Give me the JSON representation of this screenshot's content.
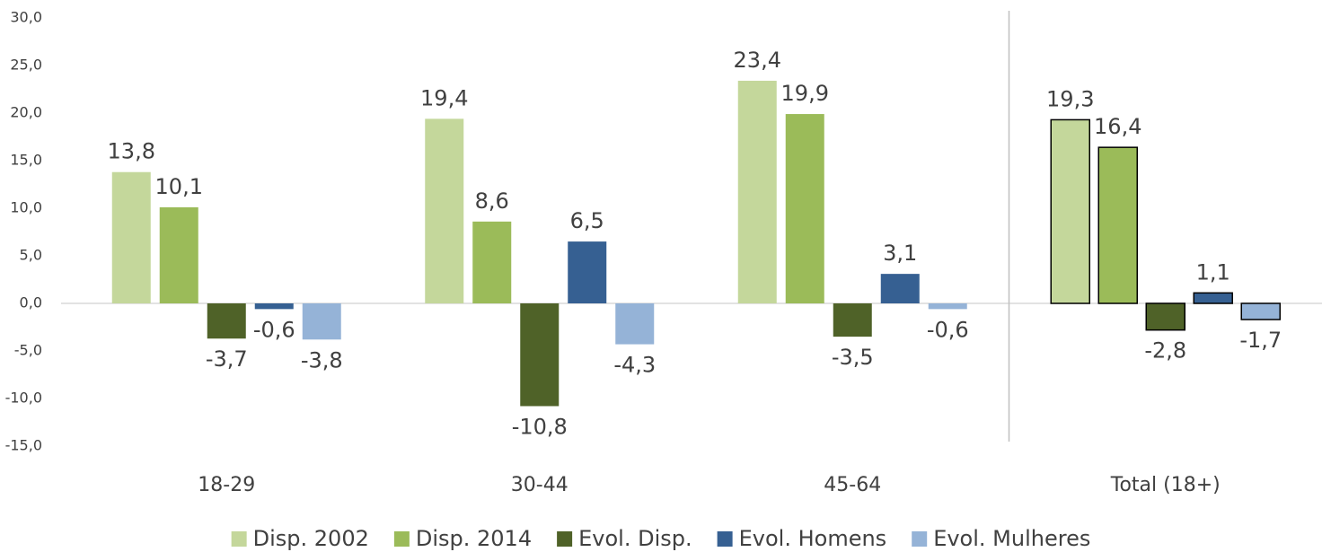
{
  "chart_data": {
    "type": "bar",
    "categories": [
      "18-29",
      "30-44",
      "45-64",
      "Total (18+)"
    ],
    "series": [
      {
        "name": "Disp. 2002",
        "color": "#c4d79b",
        "values": [
          13.8,
          19.4,
          23.4,
          19.3
        ],
        "value_labels": [
          "13,8",
          "19,4",
          "23,4",
          "19,3"
        ]
      },
      {
        "name": "Disp. 2014",
        "color": "#9bbb59",
        "values": [
          10.1,
          8.6,
          19.9,
          16.4
        ],
        "value_labels": [
          "10,1",
          "8,6",
          "19,9",
          "16,4"
        ]
      },
      {
        "name": "Evol. Disp.",
        "color": "#4f6228",
        "values": [
          -3.7,
          -10.8,
          -3.5,
          -2.8
        ],
        "value_labels": [
          "-3,7",
          "-10,8",
          "-3,5",
          "-2,8"
        ]
      },
      {
        "name": "Evol. Homens",
        "color": "#366092",
        "values": [
          -0.6,
          6.5,
          3.1,
          1.1
        ],
        "value_labels": [
          "-0,6",
          "6,5",
          "3,1",
          "1,1"
        ]
      },
      {
        "name": "Evol. Mulheres",
        "color": "#95b3d7",
        "values": [
          -3.8,
          -4.3,
          -0.6,
          -1.7
        ],
        "value_labels": [
          "-3,8",
          "-4,3",
          "-0,6",
          "-1,7"
        ]
      }
    ],
    "ylim": [
      -15,
      30
    ],
    "yticks": [
      {
        "value": -15,
        "label": "-15,0"
      },
      {
        "value": -10,
        "label": "-10,0"
      },
      {
        "value": -5,
        "label": "-5,0"
      },
      {
        "value": 0,
        "label": "0,0"
      },
      {
        "value": 5,
        "label": "5,0"
      },
      {
        "value": 10,
        "label": "10,0"
      },
      {
        "value": 15,
        "label": "15,0"
      },
      {
        "value": 20,
        "label": "20,0"
      },
      {
        "value": 25,
        "label": "25,0"
      },
      {
        "value": 30,
        "label": "30,0"
      }
    ],
    "grid": false,
    "legend": "bottom"
  }
}
